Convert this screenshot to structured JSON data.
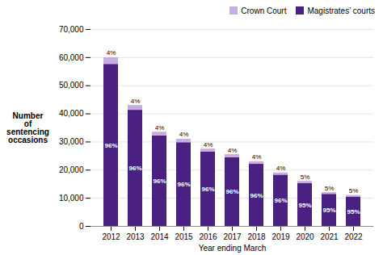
{
  "chart_data": {
    "type": "bar",
    "stacked": true,
    "categories": [
      "2012",
      "2013",
      "2014",
      "2015",
      "2016",
      "2017",
      "2018",
      "2019",
      "2020",
      "2021",
      "2022"
    ],
    "series": [
      {
        "name": "Magistrates’ courts",
        "color": "#4a2080",
        "values": [
          57600,
          41280,
          32160,
          29760,
          26400,
          24480,
          22080,
          18240,
          15200,
          11400,
          10450
        ],
        "percent_labels": [
          "96%",
          "96%",
          "96%",
          "96%",
          "96%",
          "96%",
          "96%",
          "96%",
          "95%",
          "95%",
          "95%"
        ]
      },
      {
        "name": "Crown Court",
        "color": "#c8aee0",
        "values": [
          2400,
          1720,
          1340,
          1240,
          1100,
          1020,
          920,
          760,
          800,
          600,
          550
        ],
        "percent_labels": [
          "4%",
          "4%",
          "4%",
          "4%",
          "4%",
          "4%",
          "4%",
          "4%",
          "5%",
          "5%",
          "5%"
        ]
      }
    ],
    "xlabel": "Year ending March",
    "ylabel": "Number\nof\nsentencing\noccasions",
    "ylim": [
      0,
      70000
    ],
    "yticks": [
      0,
      {
        "value": 10000,
        "label": "10,000"
      },
      {
        "value": 20000,
        "label": "20,000"
      },
      {
        "value": 30000,
        "label": "30,000"
      },
      {
        "value": 40000,
        "label": "40,000"
      },
      {
        "value": 50000,
        "label": "50,000"
      },
      {
        "value": 60000,
        "label": "60,000"
      },
      {
        "value": 70000,
        "label": "70,000"
      }
    ],
    "grid": true,
    "legend": "upper right"
  }
}
